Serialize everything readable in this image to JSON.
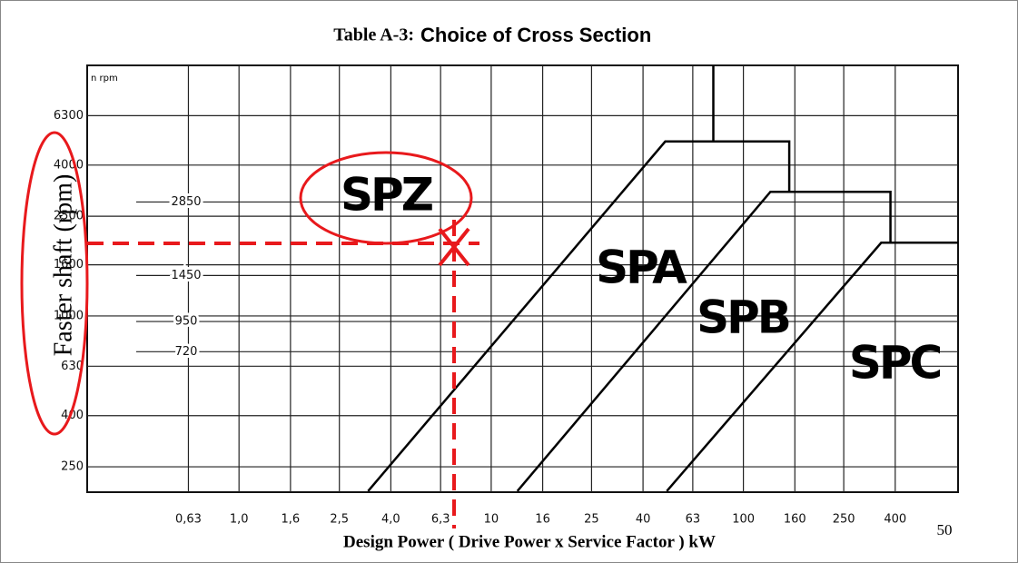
{
  "chart_data": {
    "type": "line",
    "title": "Table A-3:",
    "subtitle": "Choice of Cross Section",
    "y_unit_label": "n rpm",
    "y_label": "Faster shaft (rpm)",
    "x_label": "Design Power ( Drive Power x Service Factor ) kW",
    "page_number": "50",
    "log_x": true,
    "log_y": true,
    "grid": true,
    "xlim": [
      0.25,
      710
    ],
    "ylim": [
      198,
      10000
    ],
    "xticks": [
      {
        "value": 0.63,
        "label": "0,63"
      },
      {
        "value": 1.0,
        "label": "1,0"
      },
      {
        "value": 1.6,
        "label": "1,6"
      },
      {
        "value": 2.5,
        "label": "2,5"
      },
      {
        "value": 4.0,
        "label": "4,0"
      },
      {
        "value": 6.3,
        "label": "6,3"
      },
      10,
      16,
      25,
      40,
      63,
      100,
      160,
      250,
      400
    ],
    "yticks": [
      250,
      400,
      630,
      1000,
      1600,
      2500,
      4000,
      6300
    ],
    "speed_lines": [
      2850,
      1450,
      950,
      720
    ],
    "series": [
      {
        "color": "#000000",
        "x": [
          3.25,
          49,
          152,
          152
        ],
        "y": [
          200,
          4970,
          4970,
          3130
        ]
      },
      {
        "color": "#000000",
        "x": [
          76,
          76
        ],
        "y": [
          4970,
          10000
        ]
      },
      {
        "color": "#000000",
        "x": [
          12.7,
          128,
          383,
          383
        ],
        "y": [
          200,
          3130,
          3130,
          1960
        ]
      },
      {
        "color": "#000000",
        "x": [
          49.7,
          352,
          710
        ],
        "y": [
          200,
          1960,
          1960
        ]
      }
    ],
    "regions": [
      "SPZ",
      "SPA",
      "SPB",
      "SPC"
    ]
  }
}
